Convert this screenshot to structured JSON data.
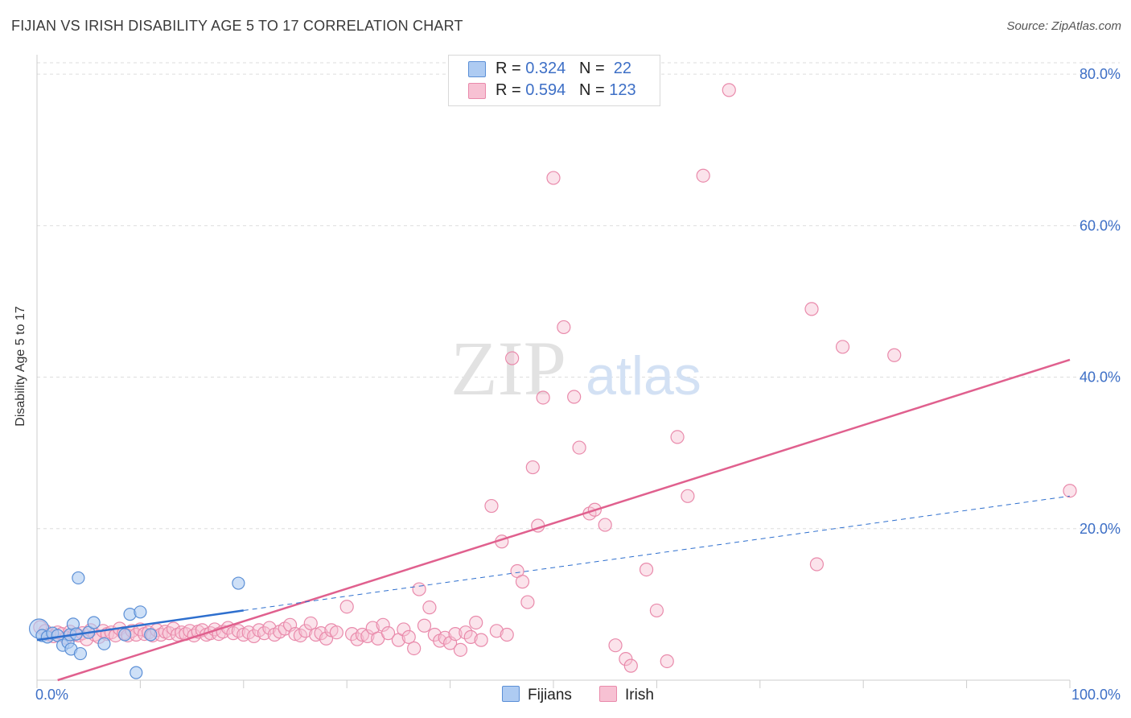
{
  "title": "FIJIAN VS IRISH DISABILITY AGE 5 TO 17 CORRELATION CHART",
  "source": "Source: ZipAtlas.com",
  "watermark": {
    "zip": "ZIP",
    "atlas": "atlas"
  },
  "legend": {
    "rows": [
      {
        "r_label": "R = ",
        "r_value": "0.324",
        "n_label": "N = ",
        "n_value": " 22"
      },
      {
        "r_label": "R = ",
        "r_value": "0.594",
        "n_label": "N = ",
        "n_value": "123"
      }
    ]
  },
  "bottom_legend": {
    "fijians": "Fijians",
    "irish": "Irish"
  },
  "colors": {
    "fijians_fill": "#aecbf2",
    "fijians_stroke": "#5b8fd6",
    "fijians_line": "#2e6fce",
    "irish_fill": "#f7c1d3",
    "irish_stroke": "#e98aab",
    "irish_line": "#e0608e",
    "axis_label": "#3d6fc6",
    "grid": "#dddddd"
  },
  "chart_data": {
    "type": "scatter",
    "title": "FIJIAN VS IRISH DISABILITY AGE 5 TO 17 CORRELATION CHART",
    "xlabel": "",
    "ylabel": "Disability Age 5 to 17",
    "xlim": [
      0,
      100
    ],
    "ylim": [
      0,
      80
    ],
    "x_tick_labels": [
      "0.0%",
      "100.0%"
    ],
    "y_ticks": [
      20,
      40,
      60,
      80
    ],
    "y_tick_labels": [
      "20.0%",
      "40.0%",
      "60.0%",
      "80.0%"
    ],
    "legend_position": "top-center",
    "series": [
      {
        "name": "Fijians",
        "R": 0.324,
        "N": 22,
        "points": [
          [
            0.2,
            6.8
          ],
          [
            0.5,
            5.9
          ],
          [
            1.0,
            5.7
          ],
          [
            1.5,
            6.2
          ],
          [
            2.0,
            5.9
          ],
          [
            2.5,
            4.6
          ],
          [
            3.0,
            5.0
          ],
          [
            3.2,
            6.0
          ],
          [
            3.3,
            4.1
          ],
          [
            3.5,
            7.4
          ],
          [
            3.8,
            6.1
          ],
          [
            4.0,
            13.5
          ],
          [
            4.2,
            3.5
          ],
          [
            5.0,
            6.3
          ],
          [
            5.5,
            7.6
          ],
          [
            6.5,
            4.8
          ],
          [
            8.5,
            6.0
          ],
          [
            9.0,
            8.7
          ],
          [
            9.6,
            1.0
          ],
          [
            10.0,
            9.0
          ],
          [
            11.0,
            6.0
          ],
          [
            19.5,
            12.8
          ]
        ],
        "trend_solid": [
          [
            0,
            5.3
          ],
          [
            20,
            9.2
          ]
        ],
        "trend_dashed": [
          [
            20,
            9.2
          ],
          [
            100,
            24.3
          ]
        ]
      },
      {
        "name": "Irish",
        "R": 0.594,
        "N": 123,
        "points": [
          [
            0.3,
            7.0
          ],
          [
            0.8,
            6.5
          ],
          [
            1.2,
            6.0
          ],
          [
            1.6,
            5.8
          ],
          [
            2.0,
            6.3
          ],
          [
            2.4,
            6.1
          ],
          [
            2.8,
            5.6
          ],
          [
            3.2,
            6.4
          ],
          [
            3.6,
            6.0
          ],
          [
            4.0,
            5.9
          ],
          [
            4.4,
            6.2
          ],
          [
            4.8,
            5.4
          ],
          [
            5.2,
            6.6
          ],
          [
            5.6,
            6.0
          ],
          [
            6.0,
            5.7
          ],
          [
            6.4,
            6.5
          ],
          [
            6.8,
            6.1
          ],
          [
            7.2,
            6.3
          ],
          [
            7.6,
            5.9
          ],
          [
            8.0,
            6.8
          ],
          [
            8.4,
            6.2
          ],
          [
            8.8,
            5.9
          ],
          [
            9.2,
            6.5
          ],
          [
            9.6,
            6.0
          ],
          [
            10.0,
            6.7
          ],
          [
            10.4,
            6.1
          ],
          [
            10.8,
            6.3
          ],
          [
            11.2,
            5.9
          ],
          [
            11.6,
            6.6
          ],
          [
            12.0,
            6.0
          ],
          [
            12.4,
            6.4
          ],
          [
            12.8,
            6.2
          ],
          [
            13.2,
            6.8
          ],
          [
            13.6,
            6.0
          ],
          [
            14.0,
            6.3
          ],
          [
            14.4,
            6.1
          ],
          [
            14.8,
            6.5
          ],
          [
            15.2,
            5.9
          ],
          [
            15.6,
            6.4
          ],
          [
            16.0,
            6.6
          ],
          [
            16.4,
            6.0
          ],
          [
            16.8,
            6.2
          ],
          [
            17.2,
            6.7
          ],
          [
            17.6,
            6.1
          ],
          [
            18.0,
            6.4
          ],
          [
            18.5,
            6.9
          ],
          [
            19.0,
            6.2
          ],
          [
            19.5,
            6.5
          ],
          [
            20.0,
            6.0
          ],
          [
            20.5,
            6.3
          ],
          [
            21.0,
            5.8
          ],
          [
            21.5,
            6.6
          ],
          [
            22.0,
            6.2
          ],
          [
            22.5,
            6.9
          ],
          [
            23.0,
            6.0
          ],
          [
            23.5,
            6.4
          ],
          [
            24.0,
            6.8
          ],
          [
            24.5,
            7.3
          ],
          [
            25.0,
            6.1
          ],
          [
            25.5,
            5.9
          ],
          [
            26.0,
            6.5
          ],
          [
            26.5,
            7.5
          ],
          [
            27.0,
            6.0
          ],
          [
            27.5,
            6.2
          ],
          [
            28.0,
            5.5
          ],
          [
            28.5,
            6.6
          ],
          [
            29.0,
            6.3
          ],
          [
            30.0,
            9.7
          ],
          [
            30.5,
            6.1
          ],
          [
            31.0,
            5.4
          ],
          [
            31.5,
            6.0
          ],
          [
            32.0,
            5.8
          ],
          [
            32.5,
            6.9
          ],
          [
            33.0,
            5.5
          ],
          [
            33.5,
            7.3
          ],
          [
            34.0,
            6.2
          ],
          [
            35.0,
            5.3
          ],
          [
            35.5,
            6.7
          ],
          [
            36.0,
            5.7
          ],
          [
            36.5,
            4.2
          ],
          [
            37.0,
            12.0
          ],
          [
            37.5,
            7.2
          ],
          [
            38.0,
            9.6
          ],
          [
            38.5,
            6.0
          ],
          [
            39.0,
            5.2
          ],
          [
            39.5,
            5.6
          ],
          [
            40.0,
            4.9
          ],
          [
            40.5,
            6.1
          ],
          [
            41.0,
            4.0
          ],
          [
            41.5,
            6.3
          ],
          [
            42.0,
            5.7
          ],
          [
            42.5,
            7.6
          ],
          [
            43.0,
            5.3
          ],
          [
            44.0,
            23.0
          ],
          [
            44.5,
            6.5
          ],
          [
            45.0,
            18.3
          ],
          [
            45.5,
            6.0
          ],
          [
            46.0,
            42.5
          ],
          [
            46.5,
            14.4
          ],
          [
            47.0,
            13.0
          ],
          [
            47.5,
            10.3
          ],
          [
            48.0,
            28.1
          ],
          [
            48.5,
            20.4
          ],
          [
            49.0,
            37.3
          ],
          [
            50.0,
            66.3
          ],
          [
            51.0,
            46.6
          ],
          [
            52.0,
            37.4
          ],
          [
            52.5,
            30.7
          ],
          [
            53.5,
            22.0
          ],
          [
            54.0,
            22.5
          ],
          [
            55.0,
            20.5
          ],
          [
            56.0,
            4.6
          ],
          [
            57.0,
            2.8
          ],
          [
            57.5,
            1.9
          ],
          [
            59.0,
            14.6
          ],
          [
            60.0,
            9.2
          ],
          [
            61.0,
            2.5
          ],
          [
            62.0,
            32.1
          ],
          [
            63.0,
            24.3
          ],
          [
            64.5,
            66.6
          ],
          [
            67.0,
            77.9
          ],
          [
            75.0,
            49.0
          ],
          [
            75.5,
            15.3
          ],
          [
            78.0,
            44.0
          ],
          [
            83.0,
            42.9
          ],
          [
            100.0,
            25.0
          ]
        ],
        "trend": [
          [
            2,
            0
          ],
          [
            100,
            42.3
          ]
        ]
      }
    ]
  }
}
